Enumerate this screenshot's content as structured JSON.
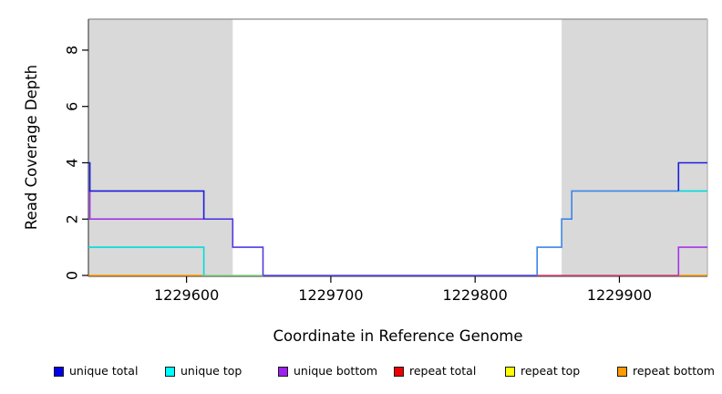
{
  "chart_data": {
    "type": "line",
    "step_style": "post",
    "title": "",
    "xlabel": "Coordinate in Reference Genome",
    "ylabel": "Read Coverage Depth",
    "xlim": [
      1229532,
      1229961
    ],
    "ylim": [
      0,
      9.1
    ],
    "x_ticks": [
      1229600,
      1229700,
      1229800,
      1229900
    ],
    "y_ticks": [
      0,
      2,
      4,
      6,
      8
    ],
    "grid": false,
    "legend_position": "bottom",
    "shaded_regions": [
      {
        "x0": 1229532,
        "x1": 1229632,
        "color": "#d9d9d9"
      },
      {
        "x0": 1229860,
        "x1": 1229961,
        "color": "#d9d9d9"
      }
    ],
    "series": [
      {
        "name": "unique total",
        "color": "#1c1ce0",
        "points": [
          [
            1229532,
            4
          ],
          [
            1229533,
            3
          ],
          [
            1229612,
            2
          ],
          [
            1229632,
            1
          ],
          [
            1229653,
            0
          ],
          [
            1229843,
            1
          ],
          [
            1229860,
            2
          ],
          [
            1229867,
            3
          ],
          [
            1229941,
            4
          ],
          [
            1229961,
            4
          ]
        ]
      },
      {
        "name": "unique top",
        "color": "#00dcdc",
        "points": [
          [
            1229532,
            1
          ],
          [
            1229612,
            0
          ],
          [
            1229843,
            1
          ],
          [
            1229860,
            2
          ],
          [
            1229867,
            3
          ],
          [
            1229961,
            3
          ]
        ]
      },
      {
        "name": "unique bottom",
        "color": "#a335e8",
        "points": [
          [
            1229532,
            3
          ],
          [
            1229533,
            2
          ],
          [
            1229632,
            1
          ],
          [
            1229653,
            0
          ],
          [
            1229941,
            1
          ],
          [
            1229961,
            1
          ]
        ]
      },
      {
        "name": "repeat total",
        "color": "#ee0000",
        "points": [
          [
            1229532,
            0
          ],
          [
            1229961,
            0
          ]
        ]
      },
      {
        "name": "repeat top",
        "color": "#ffff00",
        "points": [
          [
            1229532,
            0
          ],
          [
            1229961,
            0
          ]
        ]
      },
      {
        "name": "repeat bottom",
        "color": "#ff9c00",
        "points": [
          [
            1229532,
            0
          ],
          [
            1229961,
            0
          ]
        ]
      }
    ],
    "visible_segments": [
      {
        "name": "zero-orange-left",
        "color": "#ff9c00",
        "pts": [
          [
            1229532,
            0
          ],
          [
            1229611,
            0
          ]
        ]
      },
      {
        "name": "zero-green",
        "color": "#8cd98c",
        "pts": [
          [
            1229611,
            0
          ],
          [
            1229653,
            0
          ]
        ]
      },
      {
        "name": "zero-periwinkle",
        "color": "#5b49ee",
        "pts": [
          [
            1229653,
            0
          ],
          [
            1229843,
            0
          ]
        ]
      },
      {
        "name": "zero-rose",
        "color": "#d6487c",
        "pts": [
          [
            1229843,
            0
          ],
          [
            1229941,
            0
          ]
        ]
      },
      {
        "name": "zero-orange-right",
        "color": "#ff9c00",
        "pts": [
          [
            1229941,
            0
          ],
          [
            1229961,
            0
          ]
        ]
      },
      {
        "name": "cyan-left",
        "color": "#00dcdc",
        "pts": [
          [
            1229532,
            1
          ],
          [
            1229612,
            1
          ],
          [
            1229612,
            0
          ]
        ]
      },
      {
        "name": "purple-left",
        "color": "#a335e8",
        "pts": [
          [
            1229532,
            3
          ],
          [
            1229533,
            3
          ],
          [
            1229533,
            2
          ],
          [
            1229612,
            2
          ]
        ]
      },
      {
        "name": "violet-blend-left",
        "color": "#4f3ae6",
        "pts": [
          [
            1229612,
            2
          ],
          [
            1229632,
            2
          ],
          [
            1229632,
            1
          ],
          [
            1229653,
            1
          ],
          [
            1229653,
            0
          ]
        ]
      },
      {
        "name": "blue-left",
        "color": "#1c1ce0",
        "pts": [
          [
            1229532,
            4
          ],
          [
            1229533,
            4
          ],
          [
            1229533,
            3
          ],
          [
            1229612,
            3
          ],
          [
            1229612,
            2
          ]
        ]
      },
      {
        "name": "azure-blend-right",
        "color": "#3d85e6",
        "pts": [
          [
            1229843,
            0
          ],
          [
            1229843,
            1
          ],
          [
            1229860,
            1
          ],
          [
            1229860,
            2
          ],
          [
            1229867,
            2
          ],
          [
            1229867,
            3
          ],
          [
            1229941,
            3
          ]
        ]
      },
      {
        "name": "cyan-right",
        "color": "#00dcdc",
        "pts": [
          [
            1229941,
            3
          ],
          [
            1229961,
            3
          ]
        ]
      },
      {
        "name": "blue-right",
        "color": "#1c1ce0",
        "pts": [
          [
            1229941,
            3
          ],
          [
            1229941,
            4
          ],
          [
            1229961,
            4
          ]
        ]
      },
      {
        "name": "purple-right",
        "color": "#a335e8",
        "pts": [
          [
            1229941,
            0
          ],
          [
            1229941,
            1
          ],
          [
            1229961,
            1
          ]
        ]
      }
    ]
  },
  "legend": {
    "items": [
      {
        "label": "unique total",
        "color": "#0000ee"
      },
      {
        "label": "unique top",
        "color": "#00ffff"
      },
      {
        "label": "unique bottom",
        "color": "#a020f0"
      },
      {
        "label": "repeat total",
        "color": "#ee0000"
      },
      {
        "label": "repeat top",
        "color": "#ffff00"
      },
      {
        "label": "repeat bottom",
        "color": "#ff9c00"
      }
    ]
  }
}
